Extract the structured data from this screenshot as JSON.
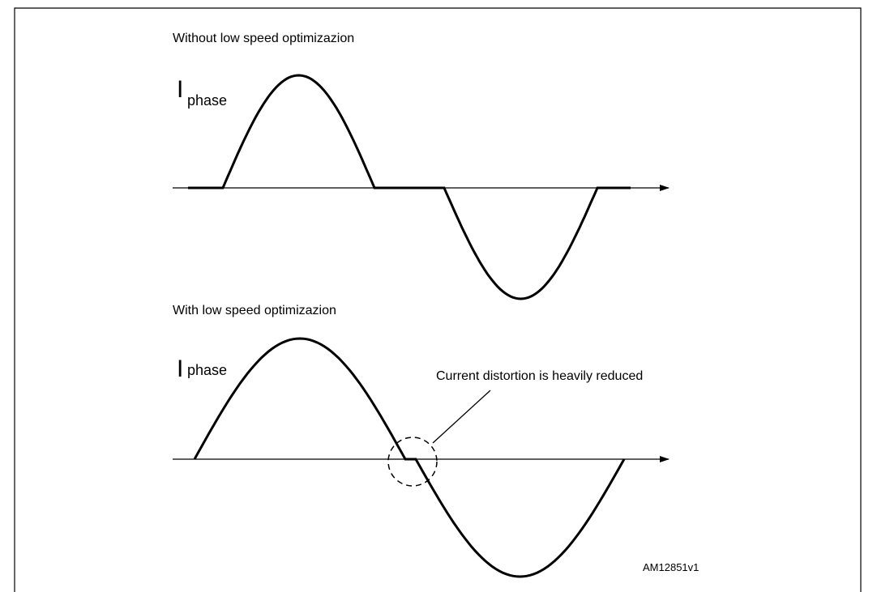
{
  "panels": [
    {
      "caption": "Without low speed optimizazion",
      "symbol": "I",
      "subscript": "phase"
    },
    {
      "caption": "With low speed optimizazion",
      "symbol": "I",
      "subscript": "phase",
      "annotation": "Current distortion is heavily reduced"
    }
  ],
  "figure_id": "AM12851v1"
}
